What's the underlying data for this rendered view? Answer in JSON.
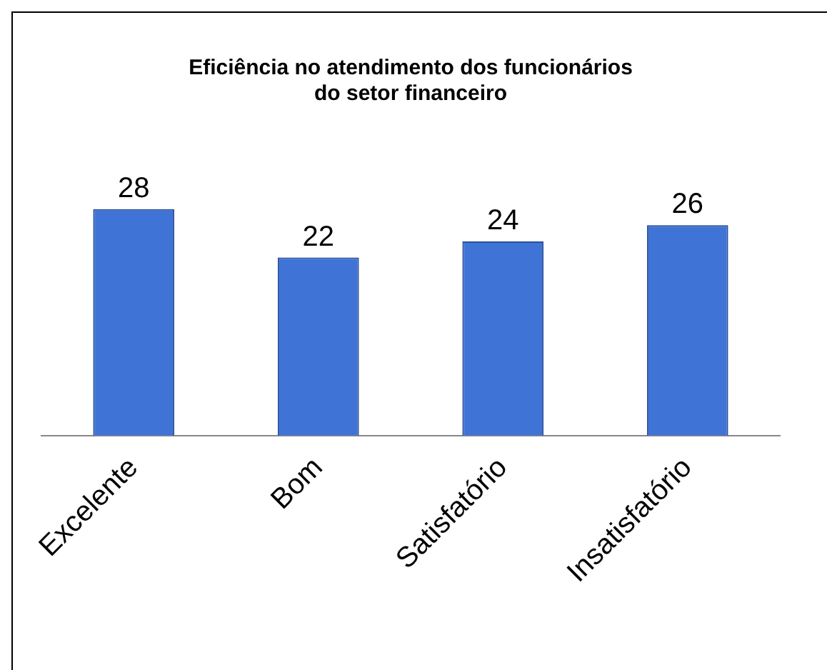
{
  "chart_data": {
    "type": "bar",
    "title": "Eficiência no atendimento dos funcionários\ndo setor financeiro",
    "categories": [
      "Excelente",
      "Bom",
      "Satisfatório",
      "Insatisfatório"
    ],
    "values": [
      28,
      22,
      24,
      26
    ],
    "color": "#3f74d6",
    "data_labels": true
  }
}
